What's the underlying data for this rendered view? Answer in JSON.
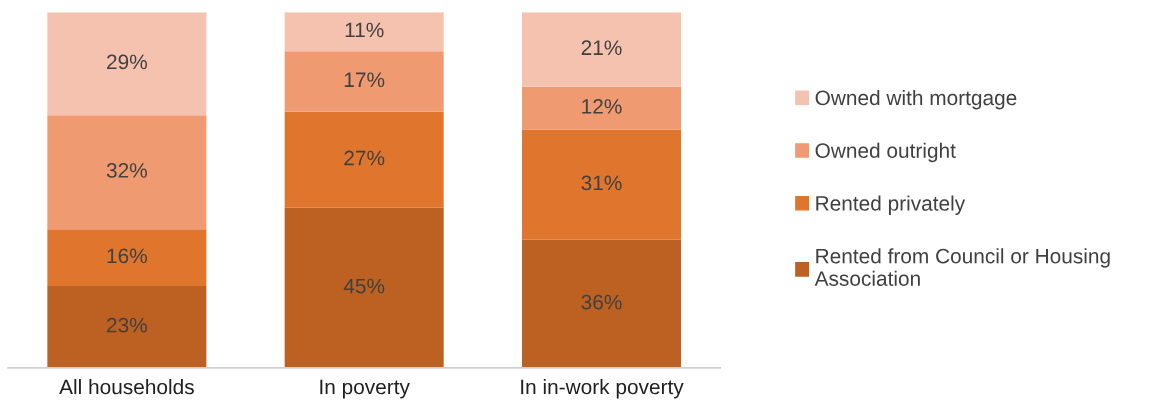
{
  "chart_data": {
    "type": "bar",
    "stacked": true,
    "categories": [
      "All households",
      "In poverty",
      "In in-work poverty"
    ],
    "series": [
      {
        "name": "Rented from Council or Housing Association",
        "color": "#bc6122",
        "values": [
          23,
          45,
          36
        ],
        "value_labels": [
          "23%",
          "45%",
          "36%"
        ]
      },
      {
        "name": "Rented privately",
        "color": "#e0762e",
        "values": [
          16,
          27,
          31
        ],
        "value_labels": [
          "16%",
          "27%",
          "31%"
        ]
      },
      {
        "name": "Owned outright",
        "color": "#f09a72",
        "values": [
          32,
          17,
          12
        ],
        "value_labels": [
          "32%",
          "17%",
          "12%"
        ]
      },
      {
        "name": "Owned with mortgage",
        "color": "#f6c2b0",
        "values": [
          29,
          11,
          21
        ],
        "value_labels": [
          "29%",
          "11%",
          "21%"
        ]
      }
    ],
    "tick_labels": "x",
    "legend": "right",
    "grid": false
  }
}
